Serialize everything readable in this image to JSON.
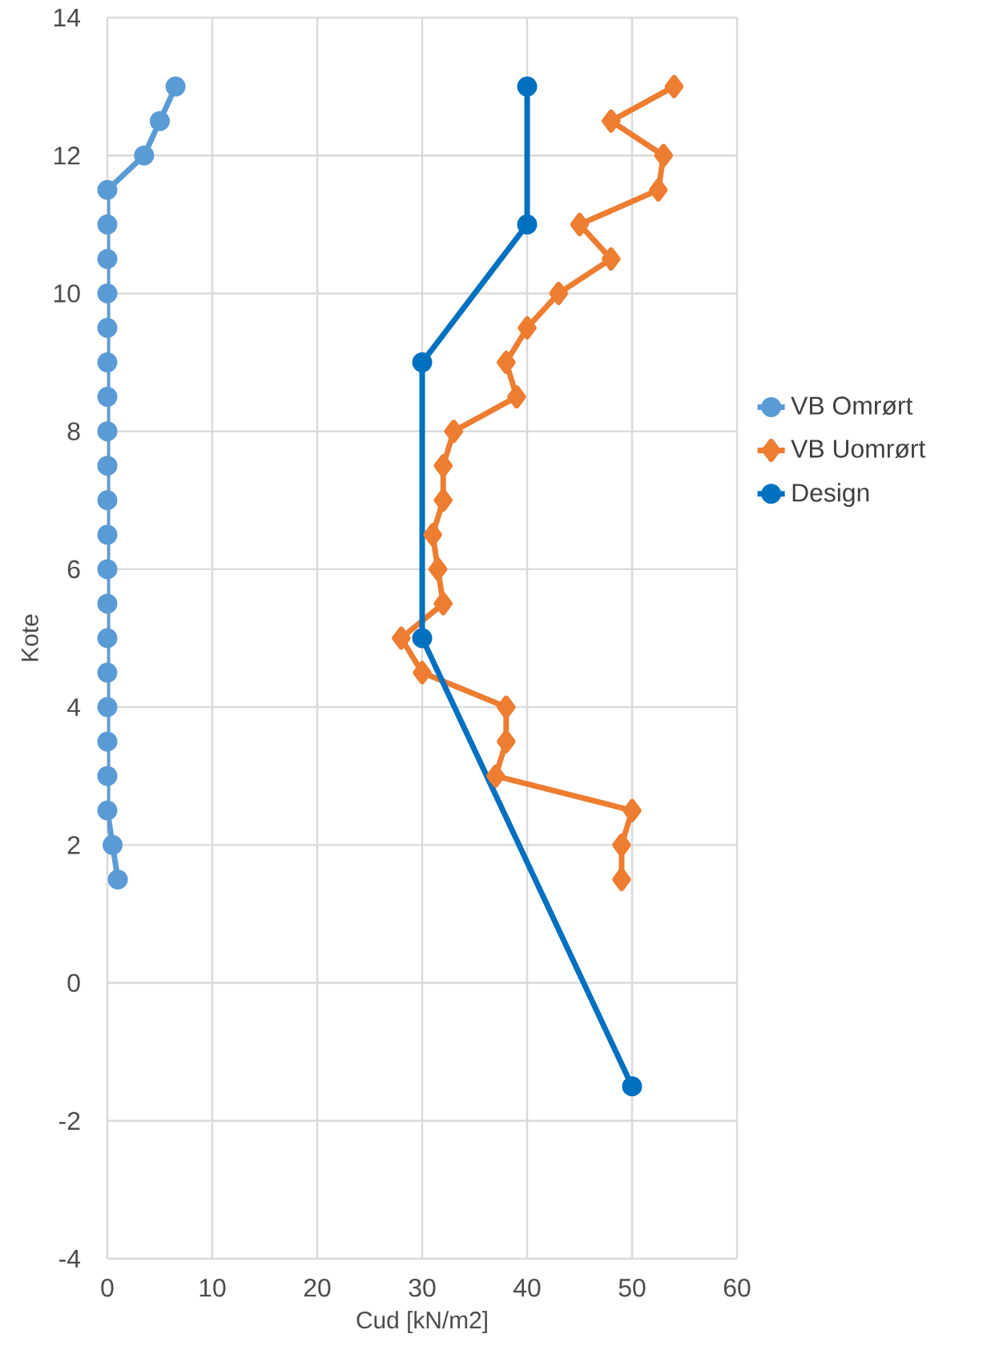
{
  "chart_data": {
    "type": "line",
    "xlabel": "Cud [kN/m2]",
    "ylabel": "Kote",
    "xlim": [
      0,
      60
    ],
    "xticks": [
      0,
      10,
      20,
      30,
      40,
      50,
      60
    ],
    "ylim": [
      -4,
      14
    ],
    "yticks": [
      -4,
      -2,
      0,
      2,
      4,
      6,
      8,
      10,
      12,
      14
    ],
    "grid": true,
    "legend": "right",
    "line_style": "solid",
    "series": [
      {
        "name": "VB Omrørt",
        "color": "#5b9bd5",
        "marker": "circle",
        "x": [
          6.5,
          5,
          3.5,
          0,
          0,
          0,
          0,
          0,
          0,
          0,
          0,
          0,
          0,
          0,
          0,
          0,
          0,
          0,
          0,
          0,
          0,
          0,
          0.5,
          1
        ],
        "values": [
          13,
          12.5,
          12,
          11.5,
          11,
          10.5,
          10,
          9.5,
          9,
          8.5,
          8,
          7.5,
          7,
          6.5,
          6,
          5.5,
          5,
          4.5,
          4,
          3.5,
          3,
          2.5,
          2,
          1.5
        ]
      },
      {
        "name": "VB Uomrørt",
        "color": "#ed7d31",
        "marker": "diamond",
        "x": [
          54,
          48,
          53,
          52.5,
          45,
          48,
          43,
          40,
          38,
          39,
          33,
          32,
          32,
          31,
          31.5,
          32,
          28,
          30,
          38,
          38,
          37,
          50,
          49,
          49
        ],
        "values": [
          13,
          12.5,
          12,
          11.5,
          11,
          10.5,
          10,
          9.5,
          9,
          8.5,
          8,
          7.5,
          7,
          6.5,
          6,
          5.5,
          5,
          4.5,
          4,
          3.5,
          3,
          2.5,
          2,
          1.5
        ]
      },
      {
        "name": "Design",
        "color": "#0070c0",
        "marker": "circle",
        "x": [
          40,
          40,
          30,
          30,
          50
        ],
        "values": [
          13,
          11,
          9,
          5,
          -1.5
        ]
      }
    ]
  }
}
